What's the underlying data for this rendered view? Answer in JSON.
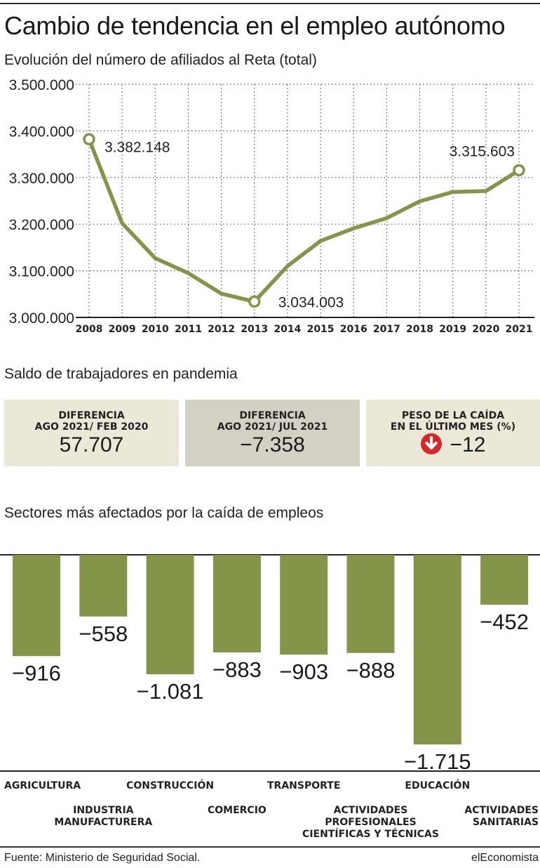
{
  "title": "Cambio de tendencia en el empleo autónomo",
  "subtitle_line": "Evolución del número de afiliados al Reta (total)",
  "subtitle_boxes": "Saldo de trabajadores en pandemia",
  "subtitle_bars": "Sectores más afectados por la caída de empleos",
  "source": "Fuente: Ministerio de Seguridad Social.",
  "brand": "elEconomista",
  "colors": {
    "accent": "#84954a",
    "box_light": "#ece8d8",
    "box_dark": "#d3d1c4",
    "down_arrow": "#d62828"
  },
  "boxes": [
    {
      "label": "DIFERENCIA\nAGO 2021/ FEB 2020",
      "value": "57.707"
    },
    {
      "label": "DIFERENCIA\nAGO 2021/ JUL 2021",
      "value": "−7.358"
    },
    {
      "label": "PESO DE LA CAÍDA\nEN EL ÚLTIMO MES (%)",
      "value": "−12",
      "icon": "down-arrow-icon"
    }
  ],
  "chart_data": [
    {
      "type": "line",
      "x": [
        "2008",
        "2009",
        "2010",
        "2011",
        "2012",
        "2013",
        "2014",
        "2015",
        "2016",
        "2017",
        "2018",
        "2019",
        "2020",
        "2021"
      ],
      "values": [
        3382148,
        3202000,
        3127000,
        3095000,
        3051000,
        3034003,
        3110000,
        3164000,
        3191000,
        3213000,
        3249000,
        3269000,
        3271000,
        3315603
      ],
      "yticks": [
        "3.000.000",
        "3.100.000",
        "3.200.000",
        "3.300.000",
        "3.400.000",
        "3.500.000"
      ],
      "ylim": [
        3000000,
        3500000
      ],
      "annotations": [
        {
          "index": 0,
          "text": "3.382.148"
        },
        {
          "index": 5,
          "text": "3.034.003"
        },
        {
          "index": 13,
          "text": "3.315.603"
        }
      ],
      "grid": "dotted"
    },
    {
      "type": "bar",
      "categories": [
        "AGRICULTURA",
        "INDUSTRIA\nMANUFACTURERA",
        "CONSTRUCCIÓN",
        "COMERCIO",
        "TRANSPORTE",
        "ACTIVIDADES\nPROFESIONALES\nCIENTÍFICAS Y TÉCNICAS",
        "EDUCACIÓN",
        "ACTIVIDADES\nSANITARIAS"
      ],
      "values": [
        -916,
        -558,
        -1081,
        -883,
        -903,
        -888,
        -1715,
        -452
      ],
      "labels": [
        "−916",
        "−558",
        "−1.081",
        "−883",
        "−903",
        "−888",
        "−1.715",
        "−452"
      ]
    }
  ]
}
